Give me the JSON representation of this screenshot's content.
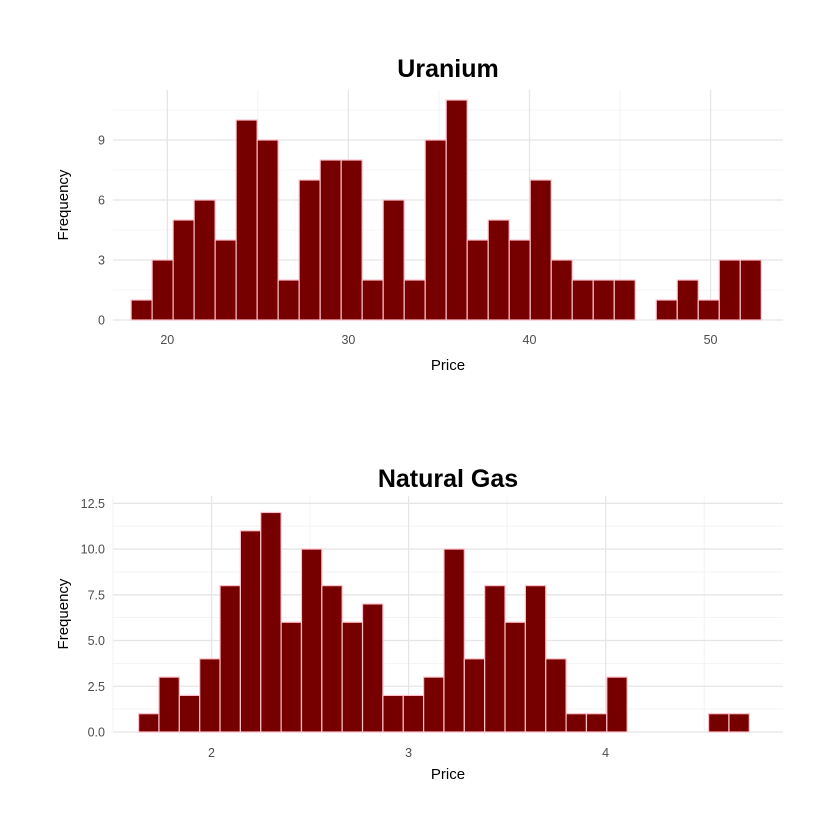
{
  "colors": {
    "bar_fill": "#760000",
    "bar_stroke": "#ffc0cb",
    "background": "#ffffff"
  },
  "chart_data": [
    {
      "type": "bar",
      "title": "Uranium",
      "xlabel": "Price",
      "ylabel": "Frequency",
      "xlim": [
        17,
        54
      ],
      "ylim": [
        0,
        11.5
      ],
      "grid": true,
      "legend": "none",
      "xticks": [
        20,
        30,
        40,
        50
      ],
      "xtick_labels": [
        "20",
        "30",
        "40",
        "50"
      ],
      "yticks": [
        0,
        3,
        6,
        9
      ],
      "ytick_labels": [
        "0",
        "3",
        "6",
        "9"
      ],
      "bin_start": 18,
      "bin_width": 1.16,
      "values": [
        1,
        3,
        5,
        6,
        4,
        10,
        9,
        2,
        7,
        8,
        8,
        2,
        6,
        2,
        9,
        11,
        4,
        5,
        4,
        7,
        3,
        2,
        2,
        2,
        0,
        1,
        2,
        1,
        3,
        3
      ]
    },
    {
      "type": "bar",
      "title": "Natural Gas",
      "xlabel": "Price",
      "ylabel": "Frequency",
      "xlim": [
        1.5,
        4.9
      ],
      "ylim": [
        0,
        12.9
      ],
      "grid": true,
      "legend": "none",
      "xticks": [
        2,
        3,
        4
      ],
      "xtick_labels": [
        "2",
        "3",
        "4"
      ],
      "yticks": [
        0,
        2.5,
        5,
        7.5,
        10,
        12.5
      ],
      "ytick_labels": [
        "0.0",
        "2.5",
        "5.0",
        "7.5",
        "10.0",
        "12.5"
      ],
      "bin_start": 1.63,
      "bin_width": 0.1033,
      "values": [
        1,
        3,
        2,
        4,
        8,
        11,
        12,
        6,
        10,
        8,
        6,
        7,
        2,
        2,
        3,
        10,
        4,
        8,
        6,
        8,
        4,
        1,
        1,
        3,
        0,
        0,
        0,
        0,
        1,
        1
      ]
    }
  ]
}
